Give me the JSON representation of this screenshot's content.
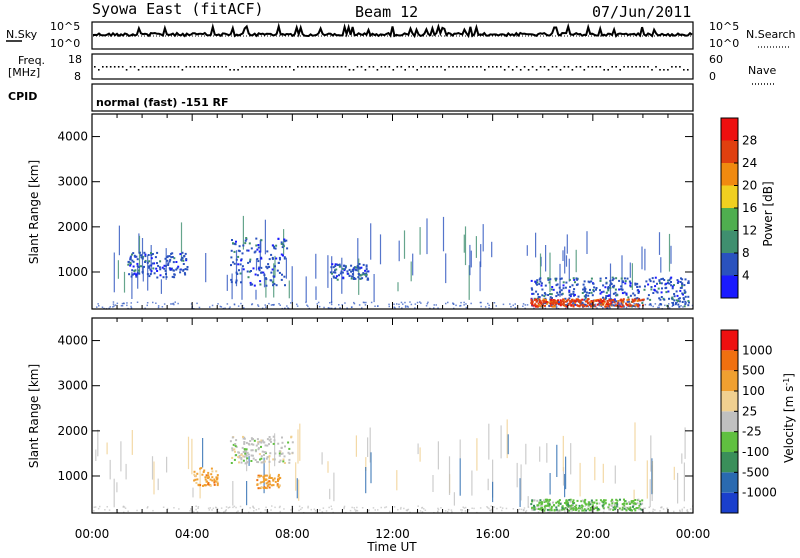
{
  "header": {
    "station": "Syowa East (fitACF)",
    "beam": "Beam 12",
    "date": "07/Jun/2011"
  },
  "noise_panel": {
    "left_label": "N.Sky",
    "right_label": "N.Search",
    "left_ticks": [
      "10^5",
      "10^0"
    ],
    "right_ticks": [
      "10^5",
      "10^0"
    ]
  },
  "freq_panel": {
    "left_label": "Freq.",
    "left_unit": "[MHz]",
    "left_ticks": [
      "18",
      "8"
    ],
    "right_label": "Nave",
    "right_ticks": [
      "60",
      "0"
    ]
  },
  "cpid_panel": {
    "label": "CPID",
    "text": "normal (fast) -151 RF"
  },
  "chart_data": [
    {
      "type": "heatmap",
      "name": "power",
      "ylabel": "Slant Range [km]",
      "xlabel": "",
      "x_ticks": [
        "00:00",
        "04:00",
        "08:00",
        "12:00",
        "16:00",
        "20:00",
        "00:00"
      ],
      "y_ticks": [
        "1000",
        "2000",
        "3000",
        "4000"
      ],
      "y_tick_values": [
        1000,
        2000,
        3000,
        4000
      ],
      "xlim": [
        0,
        24
      ],
      "ylim": [
        180,
        4500
      ],
      "colorbar": {
        "label": "Power [dB]",
        "ticks": [
          "4",
          "8",
          "12",
          "16",
          "20",
          "24",
          "28"
        ],
        "colors": [
          "#1a1aff",
          "#2a52be",
          "#3f8f6f",
          "#4fae4f",
          "#f0d020",
          "#f08a10",
          "#e04010",
          "#ee1010"
        ]
      },
      "echo_regions": [
        {
          "t0": 1.4,
          "t1": 3.8,
          "r0": 900,
          "r1": 1450,
          "level": 1
        },
        {
          "t0": 5.5,
          "t1": 7.8,
          "r0": 700,
          "r1": 1800,
          "level": 1
        },
        {
          "t0": 9.5,
          "t1": 11.0,
          "r0": 850,
          "r1": 1200,
          "level": 1
        },
        {
          "t0": 17.5,
          "t1": 23.8,
          "r0": 250,
          "r1": 900,
          "level": 1
        },
        {
          "t0": 17.5,
          "t1": 22.0,
          "r0": 250,
          "r1": 420,
          "level": 6
        }
      ]
    },
    {
      "type": "heatmap",
      "name": "velocity",
      "ylabel": "Slant Range [km]",
      "xlabel": "Time UT",
      "x_ticks": [
        "00:00",
        "04:00",
        "08:00",
        "12:00",
        "16:00",
        "20:00",
        "00:00"
      ],
      "y_ticks": [
        "1000",
        "2000",
        "3000",
        "4000"
      ],
      "y_tick_values": [
        1000,
        2000,
        3000,
        4000
      ],
      "xlim": [
        0,
        24
      ],
      "ylim": [
        180,
        4500
      ],
      "colorbar": {
        "label": "Velocity [m s^-1]",
        "ticks": [
          "1000",
          "500",
          "100",
          "25",
          "-25",
          "-100",
          "-500",
          "-1000"
        ],
        "colors": [
          "#1a3fcc",
          "#2a6ab0",
          "#3a8f5a",
          "#60c040",
          "#c0c0c0",
          "#f0d090",
          "#f0a030",
          "#f07010",
          "#ee1010"
        ]
      },
      "echo_regions": [
        {
          "t0": 4.0,
          "t1": 5.0,
          "r0": 800,
          "r1": 1200,
          "level": 6
        },
        {
          "t0": 6.5,
          "t1": 7.5,
          "r0": 750,
          "r1": 1050,
          "level": 6
        },
        {
          "t0": 17.5,
          "t1": 22.0,
          "r0": 250,
          "r1": 500,
          "level": 3
        },
        {
          "t0": 5.5,
          "t1": 8.0,
          "r0": 1300,
          "r1": 1900,
          "level": 4
        }
      ]
    }
  ]
}
